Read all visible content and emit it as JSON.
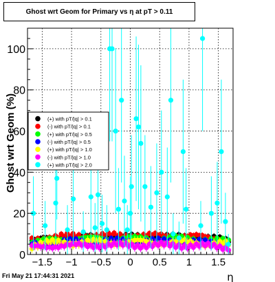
{
  "chart_data": {
    "type": "scatter",
    "title": "Ghost wrt Geom for Primary vs   η at pT > 0.11",
    "xlabel": "η",
    "ylabel": "Ghost wrt Geom (%)",
    "xlim": [
      -1.75,
      1.75
    ],
    "ylim": [
      0,
      110
    ],
    "x_ticks": [
      -1.5,
      -1,
      -0.5,
      0,
      0.5,
      1,
      1.5
    ],
    "x_tick_labels": [
      "−1.5",
      "−1",
      "−0.5",
      "0",
      "0.5",
      "1",
      "1.5"
    ],
    "y_ticks": [
      0,
      20,
      40,
      60,
      80,
      100
    ],
    "y_tick_labels": [
      "0",
      "20",
      "40",
      "60",
      "80",
      "100"
    ],
    "grid": true,
    "legend_position": "left-middle",
    "series": [
      {
        "name": "(+) with pT/|q| > 0.1",
        "color": "#000000",
        "level": 8.8,
        "wiggle": 1.2,
        "err": 1.5
      },
      {
        "name": "(-) with pT/|q| > 0.1",
        "color": "#ff0000",
        "level": 9.2,
        "wiggle": 1.5,
        "err": 1.5
      },
      {
        "name": "(+) with pT/|q| > 0.5",
        "color": "#00ff00",
        "level": 7.8,
        "wiggle": 1.5,
        "err": 1.5
      },
      {
        "name": "(-) with pT/|q| > 0.5",
        "color": "#0000ff",
        "level": 6.5,
        "wiggle": 1.5,
        "err": 1.5
      },
      {
        "name": "(+) with pT/|q| > 1.0",
        "color": "#ffff00",
        "level": 6.0,
        "wiggle": 2.0,
        "err": 2.0
      },
      {
        "name": "(-) with pT/|q| > 1.0",
        "color": "#ff00ff",
        "level": 4.5,
        "wiggle": 1.5,
        "err": 2.0
      },
      {
        "name": "(+) with pT/|q| > 2.0",
        "color": "#00ffff",
        "points": [
          {
            "x": -1.65,
            "y": 20,
            "err": 18
          },
          {
            "x": -1.45,
            "y": 14,
            "err": 12
          },
          {
            "x": -1.25,
            "y": 37,
            "err": 20
          },
          {
            "x": -1.27,
            "y": 25,
            "err": 20
          },
          {
            "x": -1.07,
            "y": 12,
            "err": 12
          },
          {
            "x": -0.97,
            "y": 27,
            "err": 22
          },
          {
            "x": -0.8,
            "y": 11,
            "err": 10
          },
          {
            "x": -0.67,
            "y": 28,
            "err": 22
          },
          {
            "x": -0.6,
            "y": 13,
            "err": 12
          },
          {
            "x": -0.55,
            "y": 29,
            "err": 24
          },
          {
            "x": -0.48,
            "y": 15,
            "err": 14
          },
          {
            "x": -0.4,
            "y": 12,
            "err": 12
          },
          {
            "x": -0.35,
            "y": 100,
            "err": 45
          },
          {
            "x": -0.31,
            "y": 100,
            "err": 45
          },
          {
            "x": -0.25,
            "y": 60,
            "err": 40
          },
          {
            "x": -0.2,
            "y": 22,
            "err": 20
          },
          {
            "x": -0.15,
            "y": 75,
            "err": 40
          },
          {
            "x": -0.1,
            "y": 26,
            "err": 22
          },
          {
            "x": -0.05,
            "y": 12,
            "err": 12
          },
          {
            "x": 0.0,
            "y": 20,
            "err": 18
          },
          {
            "x": 0.02,
            "y": 33,
            "err": 25
          },
          {
            "x": 0.1,
            "y": 66,
            "err": 40
          },
          {
            "x": 0.14,
            "y": 62,
            "err": 40
          },
          {
            "x": 0.18,
            "y": 54,
            "err": 38
          },
          {
            "x": 0.25,
            "y": 33,
            "err": 25
          },
          {
            "x": 0.35,
            "y": 23,
            "err": 20
          },
          {
            "x": 0.45,
            "y": 30,
            "err": 24
          },
          {
            "x": 0.53,
            "y": 40,
            "err": 30
          },
          {
            "x": 0.63,
            "y": 28,
            "err": 24
          },
          {
            "x": 0.69,
            "y": 75,
            "err": 40
          },
          {
            "x": 0.73,
            "y": 10,
            "err": 10
          },
          {
            "x": 0.83,
            "y": 8,
            "err": 8
          },
          {
            "x": 0.9,
            "y": 50,
            "err": 35
          },
          {
            "x": 0.95,
            "y": 22,
            "err": 20
          },
          {
            "x": 1.2,
            "y": 14,
            "err": 12
          },
          {
            "x": 1.23,
            "y": 105,
            "err": 45
          },
          {
            "x": 1.38,
            "y": 20,
            "err": 18
          },
          {
            "x": 1.48,
            "y": 25,
            "err": 20
          },
          {
            "x": 1.55,
            "y": 50,
            "err": 35
          },
          {
            "x": 1.62,
            "y": 16,
            "err": 14
          },
          {
            "x": 1.67,
            "y": 5,
            "err": 5
          }
        ]
      }
    ]
  },
  "footer": {
    "date": "Fri May 21 17:44:31 2021"
  }
}
